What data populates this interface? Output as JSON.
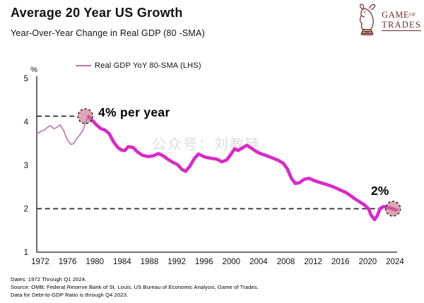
{
  "header": {
    "title": "Average 20 Year US Growth",
    "subtitle": "Year-Over-Year Change in Real GDP (80 -SMA)"
  },
  "logo": {
    "word1": "GAME",
    "word2": "OF",
    "word3": "TRADES",
    "color": "#6e2b2b",
    "icon": "knight-bull-chess-piece"
  },
  "legend": {
    "label": "Real GDP YoY 80-SMA (LHS)",
    "swatch_color": "#b77bb0"
  },
  "watermark": {
    "text": "公众号：刘教链",
    "color": "#c8c8c8"
  },
  "annotations": {
    "start_avg_label": "4% per year",
    "end_avg_label": "2%"
  },
  "footer": {
    "lines": [
      "Dates: 1972 Through Q1 2024.",
      "Source: OMB; Federal Reserve Bank of St. Louis, US Bureau of Economic Analysis, Game of Trades.",
      "Data for Debt-to-GDP Ratio is through Q4 2023."
    ]
  },
  "colors": {
    "line_main": "#d929c8",
    "line_early": "#b77bb0",
    "marker_fill": "#c76d84",
    "dashed": "#2a2a2a",
    "axis": "#444444",
    "text": "#111111"
  },
  "chart_data": {
    "type": "line",
    "title": "Average 20 Year US Growth",
    "subtitle": "Year-Over-Year Change in Real GDP (80 -SMA)",
    "ylabel": "%",
    "xlabel": "",
    "ylim": [
      1,
      5
    ],
    "xlim": [
      1971.5,
      2025
    ],
    "grid": false,
    "legend_position": "top-left",
    "y_ticks": [
      5,
      4,
      3,
      2,
      1
    ],
    "x_ticks": [
      1972,
      1976,
      1980,
      1984,
      1988,
      1992,
      1996,
      2000,
      2004,
      2008,
      2012,
      2016,
      2020,
      2024
    ],
    "series": [
      {
        "name": "Real GDP YoY 80-SMA (LHS) — 1972-1979 thin segment",
        "color": "#b77bb0",
        "width": 1.7,
        "points": [
          [
            1971.5,
            3.72
          ],
          [
            1972.1,
            3.78
          ],
          [
            1972.6,
            3.81
          ],
          [
            1973.1,
            3.88
          ],
          [
            1973.5,
            3.91
          ],
          [
            1974.0,
            3.84
          ],
          [
            1974.4,
            3.87
          ],
          [
            1974.9,
            3.93
          ],
          [
            1975.4,
            3.81
          ],
          [
            1975.9,
            3.6
          ],
          [
            1976.5,
            3.48
          ],
          [
            1976.9,
            3.5
          ],
          [
            1977.3,
            3.61
          ],
          [
            1977.8,
            3.7
          ],
          [
            1978.2,
            3.79
          ],
          [
            1978.5,
            3.92
          ],
          [
            1978.8,
            4.05
          ],
          [
            1979.1,
            4.12
          ]
        ]
      },
      {
        "name": "Real GDP YoY 80-SMA (LHS)",
        "color": "#d929c8",
        "width": 4.6,
        "points": [
          [
            1979.1,
            4.12
          ],
          [
            1979.7,
            4.02
          ],
          [
            1980.3,
            3.92
          ],
          [
            1980.9,
            3.84
          ],
          [
            1981.5,
            3.81
          ],
          [
            1982.1,
            3.73
          ],
          [
            1982.7,
            3.55
          ],
          [
            1983.3,
            3.42
          ],
          [
            1983.9,
            3.35
          ],
          [
            1984.4,
            3.34
          ],
          [
            1984.9,
            3.43
          ],
          [
            1985.6,
            3.41
          ],
          [
            1986.3,
            3.3
          ],
          [
            1987.0,
            3.23
          ],
          [
            1987.8,
            3.2
          ],
          [
            1988.6,
            3.22
          ],
          [
            1989.3,
            3.27
          ],
          [
            1990.0,
            3.22
          ],
          [
            1990.7,
            3.14
          ],
          [
            1991.4,
            3.07
          ],
          [
            1992.1,
            3.02
          ],
          [
            1992.8,
            2.9
          ],
          [
            1993.3,
            2.86
          ],
          [
            1993.9,
            2.97
          ],
          [
            1994.6,
            3.16
          ],
          [
            1995.2,
            3.26
          ],
          [
            1995.7,
            3.22
          ],
          [
            1996.3,
            3.18
          ],
          [
            1997.1,
            3.16
          ],
          [
            1997.9,
            3.14
          ],
          [
            1998.6,
            3.08
          ],
          [
            1999.3,
            3.12
          ],
          [
            1999.9,
            3.24
          ],
          [
            2000.5,
            3.38
          ],
          [
            2001.0,
            3.34
          ],
          [
            2001.6,
            3.4
          ],
          [
            2002.3,
            3.46
          ],
          [
            2002.9,
            3.4
          ],
          [
            2003.6,
            3.32
          ],
          [
            2004.4,
            3.26
          ],
          [
            2005.2,
            3.22
          ],
          [
            2006.0,
            3.17
          ],
          [
            2006.8,
            3.12
          ],
          [
            2007.6,
            3.05
          ],
          [
            2008.2,
            2.92
          ],
          [
            2008.8,
            2.7
          ],
          [
            2009.4,
            2.58
          ],
          [
            2010.0,
            2.6
          ],
          [
            2010.7,
            2.68
          ],
          [
            2011.4,
            2.7
          ],
          [
            2012.1,
            2.65
          ],
          [
            2012.9,
            2.61
          ],
          [
            2013.7,
            2.57
          ],
          [
            2014.5,
            2.53
          ],
          [
            2015.3,
            2.48
          ],
          [
            2016.0,
            2.43
          ],
          [
            2016.7,
            2.38
          ],
          [
            2017.4,
            2.31
          ],
          [
            2018.1,
            2.23
          ],
          [
            2018.8,
            2.16
          ],
          [
            2019.5,
            2.09
          ],
          [
            2020.1,
            2.0
          ],
          [
            2020.5,
            1.85
          ],
          [
            2021.0,
            1.75
          ],
          [
            2021.4,
            1.84
          ],
          [
            2021.8,
            2.0
          ],
          [
            2022.3,
            2.05
          ],
          [
            2023.0,
            2.03
          ],
          [
            2023.6,
            2.0
          ],
          [
            2024.2,
            1.97
          ]
        ]
      }
    ],
    "reference_lines": [
      {
        "value": 4.13,
        "label": "4% per year",
        "x_start": 1971.5,
        "x_end": 1977.2
      },
      {
        "value": 2.0,
        "label": "2%",
        "x_start": 1971.5,
        "x_end": 2022.3
      }
    ],
    "markers": [
      {
        "x": 1978.6,
        "y": 4.13
      },
      {
        "x": 2023.7,
        "y": 2.0
      }
    ]
  }
}
